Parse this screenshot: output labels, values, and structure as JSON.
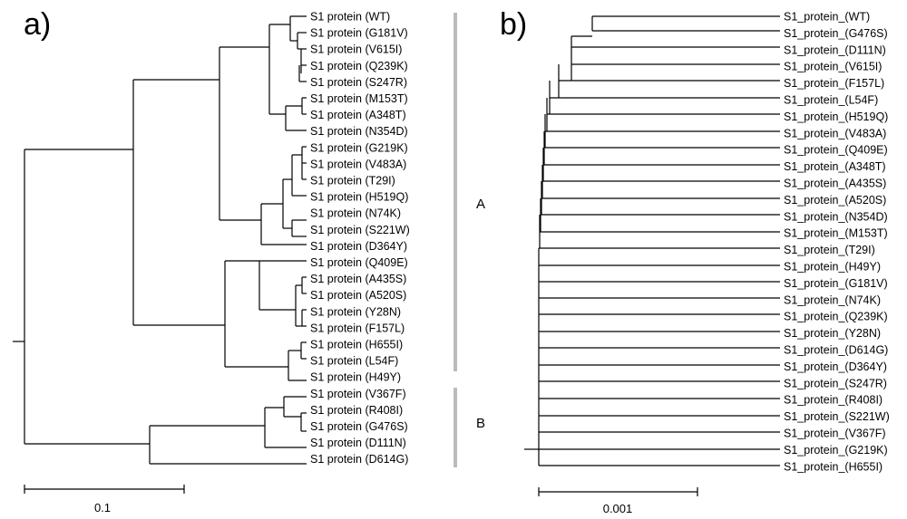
{
  "figure": {
    "panel_a_letter": "a)",
    "panel_b_letter": "b)"
  },
  "tree_a": {
    "leaves": [
      "S1 protein (WT)",
      "S1 protein (G181V)",
      "S1 protein (V615I)",
      "S1 protein (Q239K)",
      "S1 protein (S247R)",
      "S1 protein (M153T)",
      "S1 protein (A348T)",
      "S1 protein (N354D)",
      "S1 protein (G219K)",
      "S1 protein (V483A)",
      "S1 protein (T29I)",
      "S1 protein (H519Q)",
      "S1 protein (N74K)",
      "S1 protein (S221W)",
      "S1 protein (D364Y)",
      "S1 protein (Q409E)",
      "S1 protein (A435S)",
      "S1 protein (A520S)",
      "S1 protein (Y28N)",
      "S1 protein (F157L)",
      "S1 protein (H655I)",
      "S1 protein (L54F)",
      "S1 protein (H49Y)",
      "S1 protein (V367F)",
      "S1 protein (R408I)",
      "S1 protein (G476S)",
      "S1 protein (D111N)",
      "S1 protein (D614G)"
    ],
    "clades": [
      {
        "label": "A",
        "from": 0,
        "to": 22
      },
      {
        "label": "B",
        "from": 23,
        "to": 27
      }
    ],
    "scale_bar_label": "0.1"
  },
  "tree_b": {
    "leaves": [
      "S1_protein_(WT)",
      "S1_protein_(G476S)",
      "S1_protein_(D111N)",
      "S1_protein_(V615I)",
      "S1_protein_(F157L)",
      "S1_protein_(L54F)",
      "S1_protein_(H519Q)",
      "S1_protein_(V483A)",
      "S1_protein_(Q409E)",
      "S1_protein_(A348T)",
      "S1_protein_(A435S)",
      "S1_protein_(A520S)",
      "S1_protein_(N354D)",
      "S1_protein_(M153T)",
      "S1_protein_(T29I)",
      "S1_protein_(H49Y)",
      "S1_protein_(G181V)",
      "S1_protein_(N74K)",
      "S1_protein_(Q239K)",
      "S1_protein_(Y28N)",
      "S1_protein_(D614G)",
      "S1_protein_(D364Y)",
      "S1_protein_(S247R)",
      "S1_protein_(R408I)",
      "S1_protein_(S221W)",
      "S1_protein_(V367F)",
      "S1_protein_(G219K)",
      "S1_protein_(H655I)"
    ],
    "scale_bar_label": "0.001"
  }
}
